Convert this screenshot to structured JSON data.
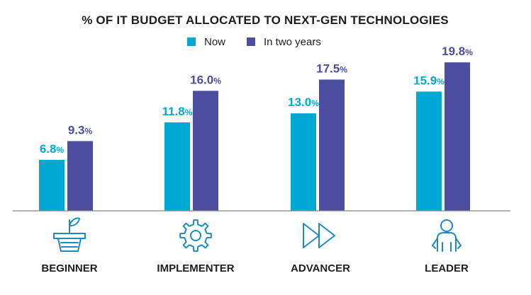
{
  "colors": {
    "now": "#00a9d4",
    "future": "#4b4ea0",
    "text": "#1e1e1e",
    "icon": "#1b8bc6",
    "axis": "#888888"
  },
  "legend": [
    {
      "label": "Now",
      "color": "#00a9d4"
    },
    {
      "label": "In two years",
      "color": "#4b4ea0"
    }
  ],
  "chart_data": {
    "type": "bar",
    "title": "% OF IT BUDGET ALLOCATED TO NEXT-GEN TECHNOLOGIES",
    "categories": [
      "BEGINNER",
      "IMPLEMENTER",
      "ADVANCER",
      "LEADER"
    ],
    "category_icons": [
      "plant-icon",
      "gear-icon",
      "fast-forward-icon",
      "person-icon"
    ],
    "series": [
      {
        "name": "Now",
        "values": [
          6.8,
          11.8,
          13.0,
          15.9
        ]
      },
      {
        "name": "In two years",
        "values": [
          9.3,
          16.0,
          17.5,
          19.8
        ]
      }
    ],
    "value_labels": [
      [
        "6.8",
        "11.8",
        "13.0",
        "15.9"
      ],
      [
        "9.3",
        "16.0",
        "17.5",
        "19.8"
      ]
    ],
    "value_suffix": "%",
    "ylim": [
      0,
      20
    ],
    "xlabel": "",
    "ylabel": "",
    "grid": false,
    "legend_position": "top-center"
  }
}
